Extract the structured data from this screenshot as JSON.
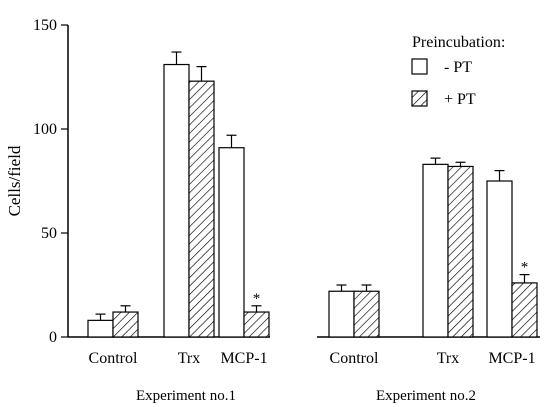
{
  "chart_data": {
    "type": "bar",
    "ylabel": "Cells/field",
    "ylim": [
      0,
      150
    ],
    "yticks": [
      0,
      50,
      100,
      150
    ],
    "legend": {
      "title": "Preincubation:",
      "placement": "top-right",
      "entries": [
        {
          "label": "- PT",
          "pattern": "open"
        },
        {
          "label": "+ PT",
          "pattern": "hatched"
        }
      ]
    },
    "groups": [
      {
        "label": "Experiment no.1",
        "categories": [
          "Control",
          "Trx",
          "MCP-1"
        ],
        "series": [
          {
            "values": [
              8,
              131,
              91
            ],
            "errors": [
              3,
              6,
              6
            ]
          },
          {
            "values": [
              12,
              123,
              12
            ],
            "errors": [
              3,
              7,
              3
            ]
          }
        ],
        "significance": [
          {
            "category": "MCP-1",
            "series": 1,
            "mark": "*"
          }
        ]
      },
      {
        "label": "Experiment no.2",
        "categories": [
          "Control",
          "Trx",
          "MCP-1"
        ],
        "series": [
          {
            "values": [
              22,
              83,
              75
            ],
            "errors": [
              3,
              3,
              5
            ]
          },
          {
            "values": [
              22,
              82,
              26
            ],
            "errors": [
              3,
              2,
              4
            ]
          }
        ],
        "significance": [
          {
            "category": "MCP-1",
            "series": 1,
            "mark": "*"
          }
        ]
      }
    ]
  }
}
